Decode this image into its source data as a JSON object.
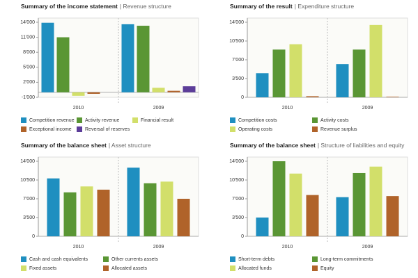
{
  "chart_data": [
    {
      "type": "bar",
      "title": "Summary of the income statement",
      "subtitle": "| Revenue structure",
      "categories": [
        "2010",
        "2009"
      ],
      "series": [
        {
          "name": "Competition revenue",
          "color": "#1f8fc0",
          "values": [
            13900,
            13600
          ]
        },
        {
          "name": "Activity revenue",
          "color": "#5a9634",
          "values": [
            11000,
            13300
          ]
        },
        {
          "name": "Financial result",
          "color": "#d2df6a",
          "values": [
            -700,
            900
          ]
        },
        {
          "name": "Exceptional income",
          "color": "#b0632a",
          "values": [
            -300,
            300
          ]
        },
        {
          "name": "Reversal of reserves",
          "color": "#5c3d99",
          "values": [
            0,
            1200
          ]
        }
      ],
      "ylim": [
        -1000,
        14000
      ],
      "yticks": [
        {
          "value": -1000,
          "label": "-1'000"
        },
        {
          "value": 2000,
          "label": "2'000"
        },
        {
          "value": 5000,
          "label": "5'000"
        },
        {
          "value": 8000,
          "label": "8'000"
        },
        {
          "value": 11000,
          "label": "11'000"
        },
        {
          "value": 14000,
          "label": "14'000"
        }
      ]
    },
    {
      "type": "bar",
      "title": "Summary of the result",
      "subtitle": "| Expenditure structure",
      "categories": [
        "2010",
        "2009"
      ],
      "series": [
        {
          "name": "Competition costs",
          "color": "#1f8fc0",
          "values": [
            4500,
            6200
          ]
        },
        {
          "name": "Activity costs",
          "color": "#5a9634",
          "values": [
            8900,
            8900
          ]
        },
        {
          "name": "Operating costs",
          "color": "#d2df6a",
          "values": [
            9900,
            13500
          ]
        },
        {
          "name": "Revenue surplus",
          "color": "#b0632a",
          "values": [
            200,
            100
          ]
        }
      ],
      "ylim": [
        0,
        14000
      ],
      "yticks": [
        0,
        {
          "value": 3500,
          "label": "3'500"
        },
        {
          "value": 7000,
          "label": "7'000"
        },
        {
          "value": 10500,
          "label": "10'500"
        },
        {
          "value": 14000,
          "label": "14'000"
        }
      ]
    },
    {
      "type": "bar",
      "title": "Summary of the balance sheet",
      "subtitle": "| Asset structure",
      "categories": [
        "2010",
        "2009"
      ],
      "series": [
        {
          "name": "Cash and cash equivalents",
          "color": "#1f8fc0",
          "values": [
            10800,
            12800
          ]
        },
        {
          "name": "Other currents assets",
          "color": "#5a9634",
          "values": [
            8200,
            9900
          ]
        },
        {
          "name": "Fixed assets",
          "color": "#d2df6a",
          "values": [
            9300,
            10200
          ]
        },
        {
          "name": "Allocated assets",
          "color": "#b0632a",
          "values": [
            8700,
            7000
          ]
        }
      ],
      "ylim": [
        0,
        14000
      ],
      "yticks": [
        0,
        {
          "value": 3500,
          "label": "3'500"
        },
        {
          "value": 7000,
          "label": "7'000"
        },
        {
          "value": 10500,
          "label": "10'500"
        },
        {
          "value": 14000,
          "label": "14'000"
        }
      ]
    },
    {
      "type": "bar",
      "title": "Summary of the balance sheet",
      "subtitle": "| Structure of liabilities and equity",
      "categories": [
        "2010",
        "2009"
      ],
      "series": [
        {
          "name": "Short-term debts",
          "color": "#1f8fc0",
          "values": [
            3500,
            7300
          ]
        },
        {
          "name": "Long-term commitments",
          "color": "#5a9634",
          "values": [
            14000,
            11800
          ]
        },
        {
          "name": "Allocated funds",
          "color": "#d2df6a",
          "values": [
            11700,
            13000
          ]
        },
        {
          "name": "Equity",
          "color": "#b0632a",
          "values": [
            7700,
            7500
          ]
        }
      ],
      "ylim": [
        0,
        14000
      ],
      "yticks": [
        0,
        {
          "value": 3500,
          "label": "3'500"
        },
        {
          "value": 7000,
          "label": "7'000"
        },
        {
          "value": 10500,
          "label": "10'500"
        },
        {
          "value": 14000,
          "label": "14'000"
        }
      ]
    }
  ]
}
